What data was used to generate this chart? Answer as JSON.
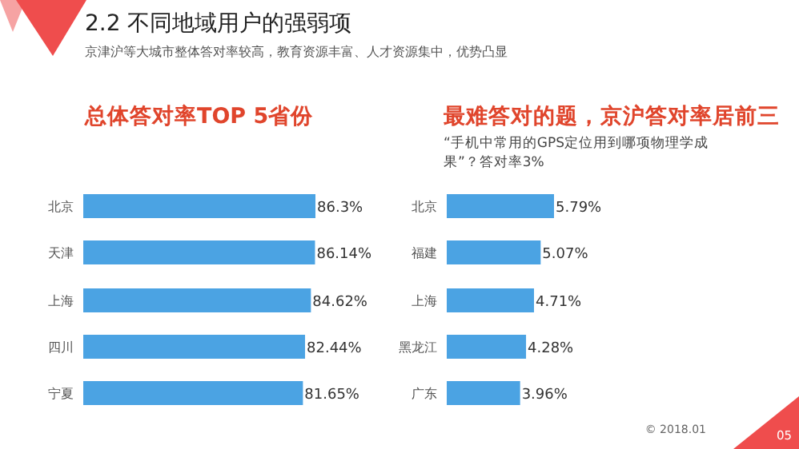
{
  "chart_data": [
    {
      "type": "bar",
      "orientation": "horizontal",
      "title": "总体答对率TOP 5省份",
      "categories": [
        "北京",
        "天津",
        "上海",
        "四川",
        "宁夏"
      ],
      "values": [
        86.3,
        86.14,
        84.62,
        82.44,
        81.65
      ],
      "value_labels": [
        "86.3%",
        "86.14%",
        "84.62%",
        "82.44%",
        "81.65%"
      ],
      "color": "#4ba3e3",
      "annotations": [
        "2.2 不同地域用户的强弱项",
        "京津沪等大城市整体答对率较高，教育资源丰富、人才资源集中，优势凸显"
      ]
    },
    {
      "type": "bar",
      "orientation": "horizontal",
      "title": "最难答对的题，京沪答对率居前三",
      "subtitle": "“手机中常用的GPS定位用到哪项物理学成果”？答对率3%",
      "categories": [
        "北京",
        "福建",
        "上海",
        "黑龙江",
        "广东"
      ],
      "values": [
        5.79,
        5.07,
        4.71,
        4.28,
        3.96
      ],
      "value_labels": [
        "5.79%",
        "5.07%",
        "4.71%",
        "4.28%",
        "3.96%"
      ],
      "color": "#4ba3e3",
      "annotations": [
        "© 2018.01",
        "05"
      ]
    }
  ]
}
